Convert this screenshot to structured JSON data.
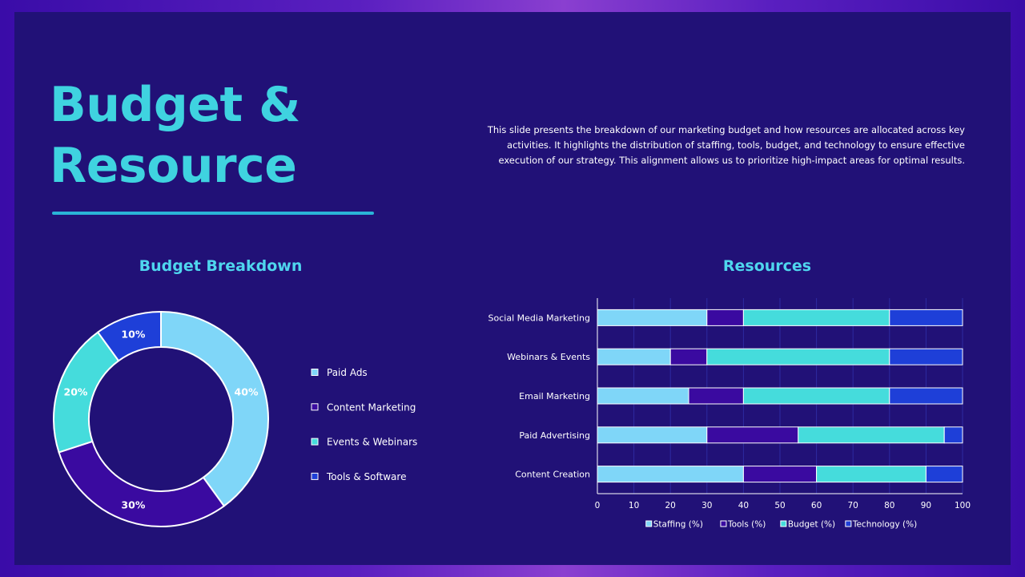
{
  "slide": {
    "title_line1": "Budget &",
    "title_line2": "Resource",
    "description": "This slide presents the breakdown of our marketing budget and how resources are allocated across key activities. It highlights the distribution of staffing, tools, budget, and technology to ensure effective execution of our strategy. This alignment allows us to prioritize high-impact areas for optimal results."
  },
  "colors": {
    "accent": "#3fd3e0",
    "light_blue": "#7fd6f8",
    "purple": "#3a0aa0",
    "cyan": "#45dcdc",
    "blue": "#1e3fd8",
    "background": "#211177"
  },
  "chart_data": [
    {
      "type": "pie",
      "title": "Budget Breakdown",
      "categories": [
        "Paid Ads",
        "Content Marketing",
        "Events & Webinars",
        "Tools & Software"
      ],
      "values": [
        40,
        30,
        20,
        10
      ],
      "labels": [
        "40%",
        "30%",
        "20%",
        "10%"
      ],
      "legend": "right"
    },
    {
      "type": "bar",
      "orientation": "horizontal",
      "stacked": true,
      "title": "Resources",
      "categories": [
        "Social Media Marketing",
        "Webinars & Events",
        "Email Marketing",
        "Paid Advertising",
        "Content Creation"
      ],
      "series": [
        {
          "name": "Staffing (%)",
          "values": [
            30,
            20,
            25,
            30,
            40
          ]
        },
        {
          "name": "Tools (%)",
          "values": [
            10,
            10,
            15,
            25,
            20
          ]
        },
        {
          "name": "Budget (%)",
          "values": [
            40,
            50,
            40,
            40,
            30
          ]
        },
        {
          "name": "Technology (%)",
          "values": [
            20,
            20,
            20,
            5,
            10
          ]
        }
      ],
      "xlim": [
        0,
        100
      ],
      "xticks": [
        "0",
        "10",
        "20",
        "30",
        "40",
        "50",
        "60",
        "70",
        "80",
        "90",
        "100"
      ],
      "grid": true,
      "legend": "bottom"
    }
  ]
}
